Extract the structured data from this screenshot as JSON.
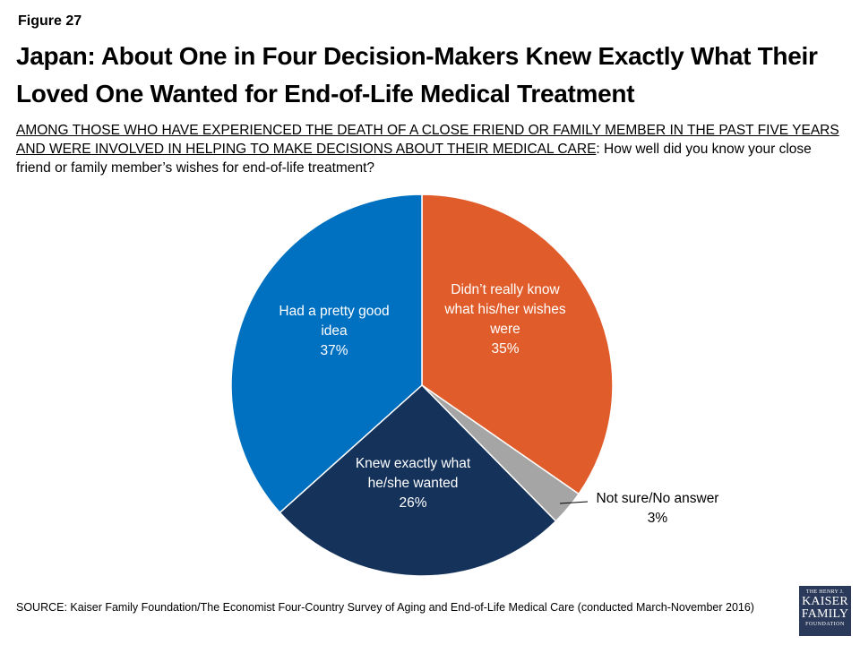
{
  "figure_label": "Figure 27",
  "title": "Japan: About One in Four Decision-Makers Knew Exactly What Their Loved One Wanted for End-of-Life Medical Treatment",
  "question": {
    "underlined": "AMONG THOSE WHO HAVE EXPERIENCED THE DEATH OF A CLOSE FRIEND OR FAMILY MEMBER IN THE PAST FIVE YEARS AND WERE INVOLVED IN HELPING TO MAKE DECISIONS ABOUT THEIR MEDICAL CARE",
    "rest": ": How well did you know your close friend or family member’s wishes for end-of-life treatment?"
  },
  "chart_data": {
    "type": "pie",
    "start_angle_deg": 0,
    "direction": "clockwise",
    "slices": [
      {
        "label_lines": [
          "Didn’t really know",
          "what his/her wishes",
          "were"
        ],
        "value": 35,
        "value_label": "35%",
        "color": "#e05c2a",
        "text_color": "#ffffff"
      },
      {
        "label_lines": [
          "Not sure/No answer"
        ],
        "value": 3,
        "value_label": "3%",
        "color": "#a5a5a5",
        "text_color": "#000000"
      },
      {
        "label_lines": [
          "Knew exactly what",
          "he/she wanted"
        ],
        "value": 26,
        "value_label": "26%",
        "color": "#14325a",
        "text_color": "#ffffff"
      },
      {
        "label_lines": [
          "Had a pretty good",
          "idea"
        ],
        "value": 37,
        "value_label": "37%",
        "color": "#0070c0",
        "text_color": "#ffffff"
      }
    ]
  },
  "source": "SOURCE: Kaiser Family Foundation/The Economist Four-Country Survey of Aging and End-of-Life Medical Care (conducted March-November 2016)",
  "logo": {
    "line1": "THE HENRY J.",
    "line2": "KAISER",
    "line3": "FAMILY",
    "line4": "FOUNDATION"
  }
}
